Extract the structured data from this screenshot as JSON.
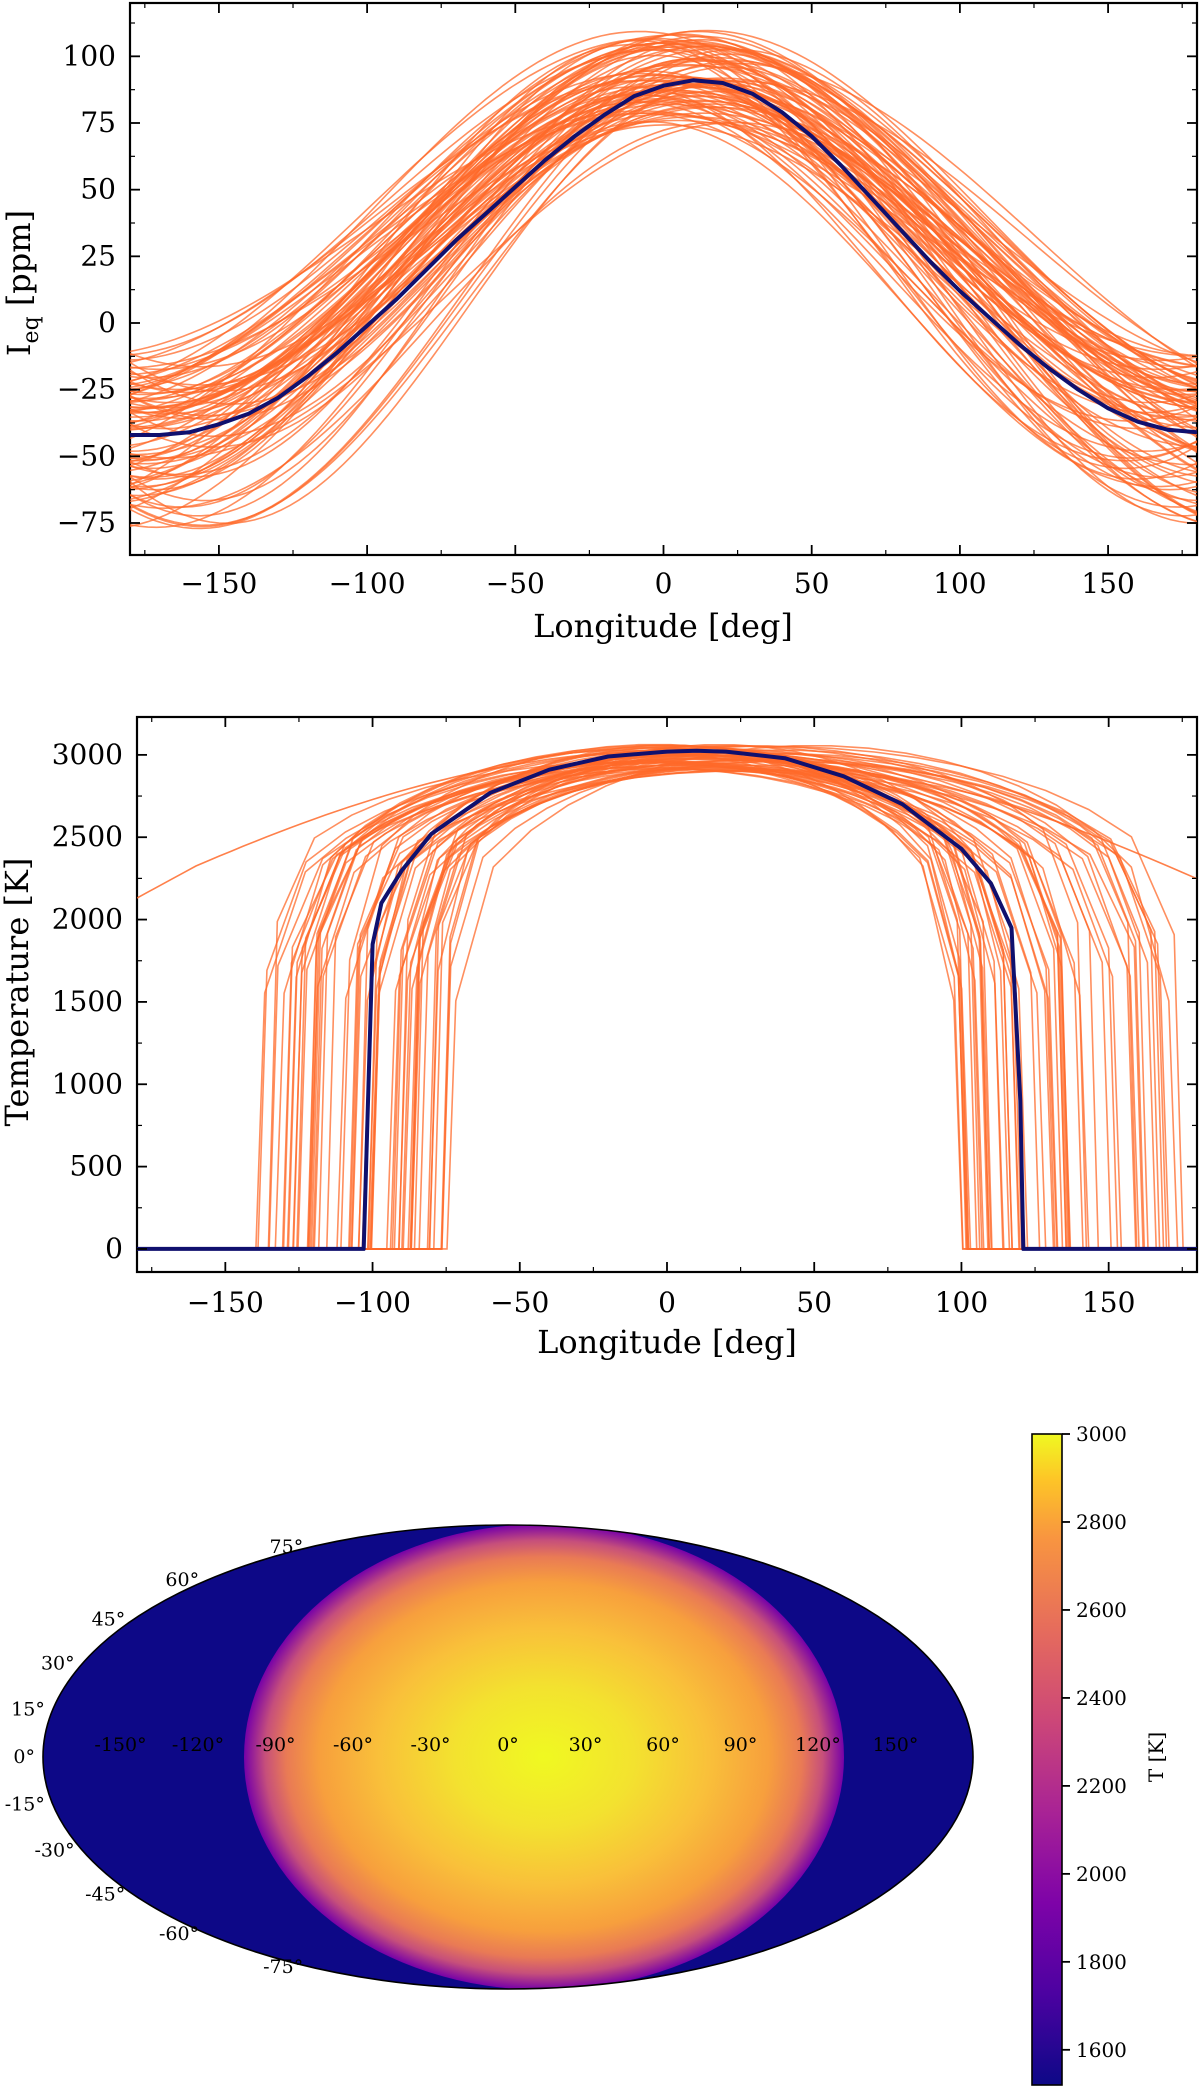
{
  "chart_data": [
    {
      "type": "line",
      "xlabel": "Longitude [deg]",
      "ylabel_main": "I",
      "ylabel_sub": "eq",
      "ylabel_unit": " [ppm]",
      "xlim": [
        -180,
        180
      ],
      "ylim": [
        -87,
        120
      ],
      "xticks": [
        -150,
        -100,
        -50,
        0,
        50,
        100,
        150
      ],
      "yticks": [
        -75,
        -50,
        -25,
        0,
        25,
        50,
        75,
        100
      ],
      "series": [
        {
          "role": "best-fit",
          "color": "#10106e",
          "x": [
            -180,
            -170,
            -160,
            -150,
            -140,
            -130,
            -120,
            -110,
            -100,
            -90,
            -80,
            -70,
            -60,
            -50,
            -40,
            -30,
            -20,
            -10,
            0,
            10,
            20,
            30,
            40,
            50,
            60,
            70,
            80,
            90,
            100,
            110,
            120,
            130,
            140,
            150,
            160,
            170,
            180
          ],
          "y": [
            -42,
            -42,
            -41,
            -38,
            -34,
            -28,
            -20,
            -11,
            -1,
            9,
            20,
            31,
            41,
            51,
            61,
            70,
            78,
            85,
            89,
            91,
            90,
            86,
            79,
            70,
            59,
            47,
            35,
            23,
            12,
            2,
            -8,
            -17,
            -25,
            -32,
            -37,
            -40,
            -41
          ]
        }
      ],
      "samples": {
        "role": "posterior-draws",
        "color": "#ff6a2a",
        "count": 90,
        "peak_longitude_range": [
          -12,
          25
        ],
        "amplitude_range": [
          74,
          110
        ],
        "minimum_range": [
          -78,
          -12
        ]
      }
    },
    {
      "type": "line",
      "xlabel": "Longitude [deg]",
      "ylabel": "Temperature [K]",
      "xlim": [
        -180,
        180
      ],
      "ylim": [
        -140,
        3230
      ],
      "xticks": [
        -150,
        -100,
        -50,
        0,
        50,
        100,
        150
      ],
      "yticks": [
        0,
        500,
        1000,
        1500,
        2000,
        2500,
        3000
      ],
      "series": [
        {
          "role": "best-fit",
          "color": "#10106e",
          "x": [
            -180,
            -103,
            -100,
            -97,
            -90,
            -80,
            -60,
            -40,
            -20,
            0,
            10,
            20,
            40,
            60,
            80,
            100,
            110,
            117,
            120,
            121,
            180
          ],
          "y": [
            0,
            0,
            1850,
            2100,
            2300,
            2520,
            2770,
            2910,
            2990,
            3020,
            3025,
            3020,
            2980,
            2870,
            2700,
            2430,
            2220,
            1950,
            900,
            0,
            0
          ]
        }
      ],
      "samples": {
        "role": "posterior-draws",
        "color": "#ff6a2a",
        "count": 60,
        "west_cutoff_range": [
          -140,
          -74
        ],
        "east_cutoff_range": [
          100,
          176
        ],
        "peak_temperature_range": [
          2900,
          3070
        ]
      }
    },
    {
      "type": "heatmap",
      "projection": "mollweide",
      "colormap": "plasma",
      "colorbar_label": "T [K]",
      "colorbar_range": [
        1520,
        3000
      ],
      "colorbar_ticks": [
        1600,
        1800,
        2000,
        2200,
        2400,
        2600,
        2800,
        3000
      ],
      "lon_labels": [
        "-150°",
        "-120°",
        "-90°",
        "-60°",
        "-30°",
        "0°",
        "30°",
        "60°",
        "90°",
        "120°",
        "150°"
      ],
      "lat_labels": [
        "75°",
        "60°",
        "45°",
        "30°",
        "15°",
        "0°",
        "-15°",
        "-30°",
        "-45°",
        "-60°",
        "-75°"
      ],
      "dayside_lon_range": [
        -103,
        121
      ],
      "hotspot_temperature": 3000,
      "nightside_temperature": 1520
    }
  ]
}
